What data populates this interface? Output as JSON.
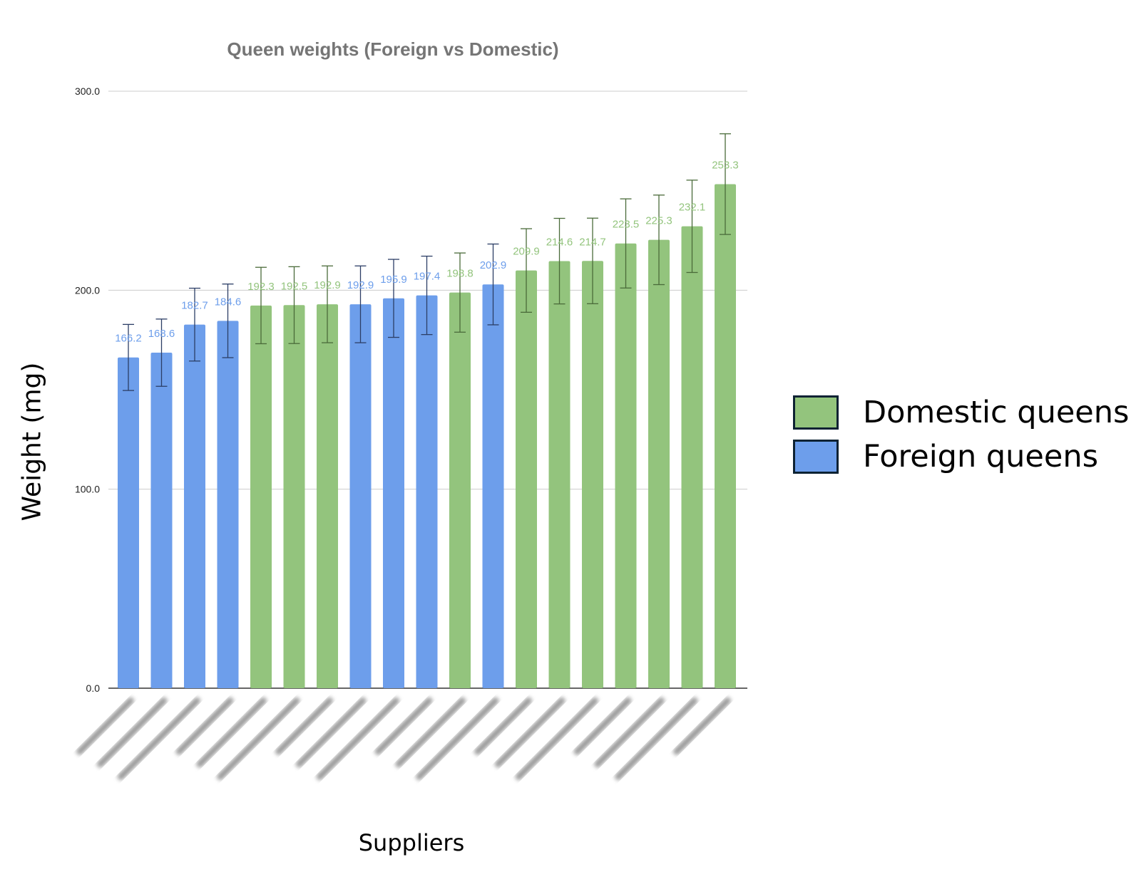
{
  "chart_data": {
    "type": "bar",
    "title": "Queen weights (Foreign vs Domestic)",
    "xlabel": "Suppliers",
    "ylabel": "Weight (mg)",
    "ylim": [
      0,
      300
    ],
    "yticks": [
      "0.0",
      "100.0",
      "200.0",
      "300.0"
    ],
    "grid": true,
    "legend_placement": "right",
    "categories_blurred": true,
    "series": [
      {
        "name": "Domestic queens",
        "color": "#93c47d",
        "error_color": "#4a6b3a"
      },
      {
        "name": "Foreign queens",
        "color": "#6d9eeb",
        "error_color": "#2c3e66"
      }
    ],
    "bars": [
      {
        "value": 166.2,
        "label": "166.2",
        "group": "Foreign queens",
        "error": 16.6
      },
      {
        "value": 168.6,
        "label": "168.6",
        "group": "Foreign queens",
        "error": 16.9
      },
      {
        "value": 182.7,
        "label": "182.7",
        "group": "Foreign queens",
        "error": 18.3
      },
      {
        "value": 184.6,
        "label": "184.6",
        "group": "Foreign queens",
        "error": 18.5
      },
      {
        "value": 192.3,
        "label": "192.3",
        "group": "Domestic queens",
        "error": 19.2
      },
      {
        "value": 192.5,
        "label": "192.5",
        "group": "Domestic queens",
        "error": 19.3
      },
      {
        "value": 192.9,
        "label": "192.9",
        "group": "Domestic queens",
        "error": 19.3
      },
      {
        "value": 192.9,
        "label": "192.9",
        "group": "Foreign queens",
        "error": 19.3
      },
      {
        "value": 195.9,
        "label": "195.9",
        "group": "Foreign queens",
        "error": 19.6
      },
      {
        "value": 197.4,
        "label": "197.4",
        "group": "Foreign queens",
        "error": 19.7
      },
      {
        "value": 198.8,
        "label": "198.8",
        "group": "Domestic queens",
        "error": 19.9
      },
      {
        "value": 202.9,
        "label": "202.9",
        "group": "Foreign queens",
        "error": 20.3
      },
      {
        "value": 209.9,
        "label": "209.9",
        "group": "Domestic queens",
        "error": 21.0
      },
      {
        "value": 214.6,
        "label": "214.6",
        "group": "Domestic queens",
        "error": 21.5
      },
      {
        "value": 214.7,
        "label": "214.7",
        "group": "Domestic queens",
        "error": 21.5
      },
      {
        "value": 223.5,
        "label": "223.5",
        "group": "Domestic queens",
        "error": 22.4
      },
      {
        "value": 225.3,
        "label": "225.3",
        "group": "Domestic queens",
        "error": 22.5
      },
      {
        "value": 232.1,
        "label": "232.1",
        "group": "Domestic queens",
        "error": 23.2
      },
      {
        "value": 253.3,
        "label": "253.3",
        "group": "Domestic queens",
        "error": 25.3
      }
    ]
  }
}
